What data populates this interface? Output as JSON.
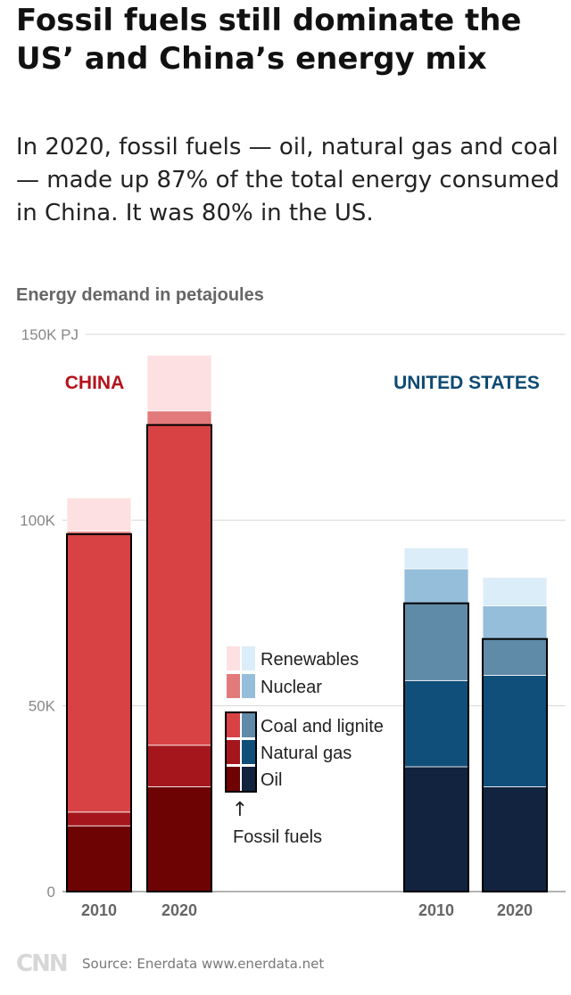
{
  "header": {
    "title": "Fossil fuels still dominate the US’ and China’s energy mix",
    "subtitle": "In 2020, fossil fuels — oil, natural gas and coal — made up 87% of the total energy consumed in China. It was 80% in the US."
  },
  "chart_data": {
    "type": "bar",
    "stacked": true,
    "title": "Energy demand in petajoules",
    "ylim": [
      0,
      150000
    ],
    "y_ticks": [
      {
        "value": 0,
        "label": "0"
      },
      {
        "value": 50000,
        "label": "50K"
      },
      {
        "value": 100000,
        "label": "100K"
      },
      {
        "value": 150000,
        "label": "150K PJ"
      }
    ],
    "groups": [
      {
        "name": "CHINA",
        "color": "#b5121b",
        "bars": [
          {
            "label": "2010",
            "Oil": 17700,
            "Natural gas": 3700,
            "Coal and lignite": 74800,
            "Nuclear": 800,
            "Renewables": 9000
          },
          {
            "label": "2020",
            "Oil": 28200,
            "Natural gas": 11200,
            "Coal and lignite": 86200,
            "Nuclear": 3800,
            "Renewables": 15000
          }
        ]
      },
      {
        "name": "UNITED STATES",
        "color": "#0d4a73",
        "bars": [
          {
            "label": "2010",
            "Oil": 33600,
            "Natural gas": 23200,
            "Coal and lignite": 20800,
            "Nuclear": 9300,
            "Renewables": 5600
          },
          {
            "label": "2020",
            "Oil": 28200,
            "Natural gas": 30000,
            "Coal and lignite": 9800,
            "Nuclear": 8900,
            "Renewables": 7700
          }
        ]
      }
    ],
    "series": [
      {
        "name": "Oil",
        "china_color": "#6e0303",
        "us_color": "#12233f",
        "fossil": true
      },
      {
        "name": "Natural gas",
        "china_color": "#a5161c",
        "us_color": "#0f4f7a",
        "fossil": true
      },
      {
        "name": "Coal and lignite",
        "china_color": "#d94244",
        "us_color": "#5f8aa8",
        "fossil": true
      },
      {
        "name": "Nuclear",
        "china_color": "#e2797b",
        "us_color": "#95bedb",
        "fossil": false
      },
      {
        "name": "Renewables",
        "china_color": "#fde0e1",
        "us_color": "#dbedf8",
        "fossil": false
      }
    ],
    "legend_note": "Fossil fuels",
    "legend_arrow": "↑"
  },
  "footer": {
    "logo": "CNN",
    "source": "Source: Enerdata www.enerdata.net"
  }
}
